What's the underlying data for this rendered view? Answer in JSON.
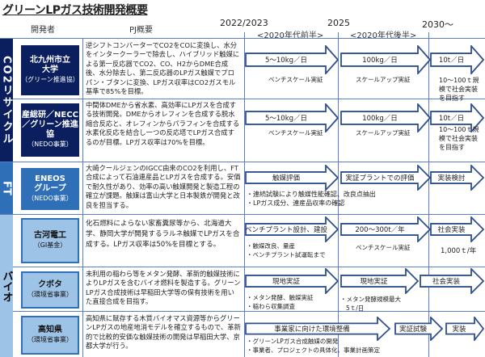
{
  "title": "グリーンLPガス技術開発概要",
  "header": {
    "developer": "開発者",
    "pj": "PJ概要",
    "y2022": "2022/2023",
    "y2025": "2025",
    "y2030": "2030〜",
    "early": "<2020年代前半>",
    "late": "<2020年代後半>"
  },
  "categories": {
    "co2": "CO2リサイクル",
    "ft": "FT",
    "bio": "バイオ"
  },
  "colors": {
    "navy": "#0b1f5e",
    "mid_blue": "#2e6fb7",
    "light_blue": "#9dc3e6",
    "arrow_outline": "#2f4f8f"
  },
  "rows": [
    {
      "name": "北九州市立大学",
      "sub": "（グリーン推進協）",
      "pj": "逆シフトコンバーターでCO2をCOに変換し、水分をインタークーラーで除去し、ハイブリッド触媒による第一反応器でCO2、CO、H2からDME合成後、水分除去し、第二反応器のLPガス触媒でプロパン・ブタンに変換、LPガス収率はCO2ガスモル基準で85%を目標。",
      "a1": "5〜10kg／日",
      "n1": "ベンチスケール実証",
      "a2": "100kg／日",
      "n2": "スケールアップ実証",
      "a3": "10t／日",
      "n3": "10〜100ｔ規模で社会実装を目指す"
    },
    {
      "name": "産総研／NECC／グリーン推進協",
      "sub": "（NEDO事業）",
      "pj": "中間体DMEから省水素、高効率にLPガスを合成する技術開発。DMEからオレフィンを合成する脱水縮合反応と、オレフィンからパラフィンを合成する水素化反応を結合し一つの反応塔でLPガス合成するのが目標。LPガス収率は70%を目標。",
      "a1": "5〜10kg／日",
      "n1": "ベンチスケール実証",
      "a2": "100kg／日",
      "n2": "スケールアップ実証",
      "a3": "10t／日",
      "n3": "10〜100ｔ規模で社会実装を目指す"
    },
    {
      "name": "ENEOSグループ",
      "sub": "（NEDO事業）",
      "pj": "大崎クールジェンのIGCC由来のCO2を利用し、FT合成によって石油連産品とLPガスを合成する。安価で耐久性があり、効率の高い触媒開発と製造工程の確立が課題。触媒は富山大学と日本製鉄が開発と改良を担当する。",
      "a1": "触媒評価",
      "a2": "実証プラントでの評価",
      "a3": "実装検討",
      "n1": "・連続試験により触媒性能確認、改良点抽出",
      "n1b": "・LPガス成分、連産品収率の確認"
    },
    {
      "name": "古河電工",
      "sub": "（GI基金）",
      "pj": "化石燃料によらない家畜糞尿等から、北海道大学、静岡大学が開発するラルネ触媒でLPガスを合成する。LPガス収率は50%を目標とする。",
      "a1": "ベンチプラント設計、建設",
      "n1": "・触媒改良、量産",
      "n1b": "・ベンチプラント試運転まで",
      "a2": "200〜300t／年",
      "n2": "ベンチスケール実証",
      "a3": "社会実装",
      "n3": "1,000ｔ/年"
    },
    {
      "name": "クボタ",
      "sub": "（環境省事業）",
      "pj": "未利用の稲わら等をメタン発酵、革新的触媒技術によりLPガスを含むバイオ燃料を製造する。グリーンLPガス合成技術は早稲田大学等の保有技術を用いた直接合成を目指す。",
      "a1": "現地実証",
      "n1": "・メタン発酵、触媒実証",
      "n1b": "・稲わら収集調査",
      "a2": "現地実証",
      "n2": "・メタン発酵規模最大",
      "n2b": "5ｔ/日",
      "a3": "社会実装"
    },
    {
      "name": "高知県",
      "sub": "（環境省事業）",
      "pj": "高知県に賦存する木質バイオマス資源等からグリーンLPガスの地産地消モデルを確立するもので、革新的で比較的安価な触媒技術の開発は早稲田大学、京都大学が行う。",
      "a1": "事業家に向けた環境整備",
      "n1": "・グリーンLPガス合成触媒の開発",
      "n1b": "・事業者、プロジェクトの具体化、事業計画策定",
      "a2": "実証試験",
      "a3": "実装"
    }
  ]
}
